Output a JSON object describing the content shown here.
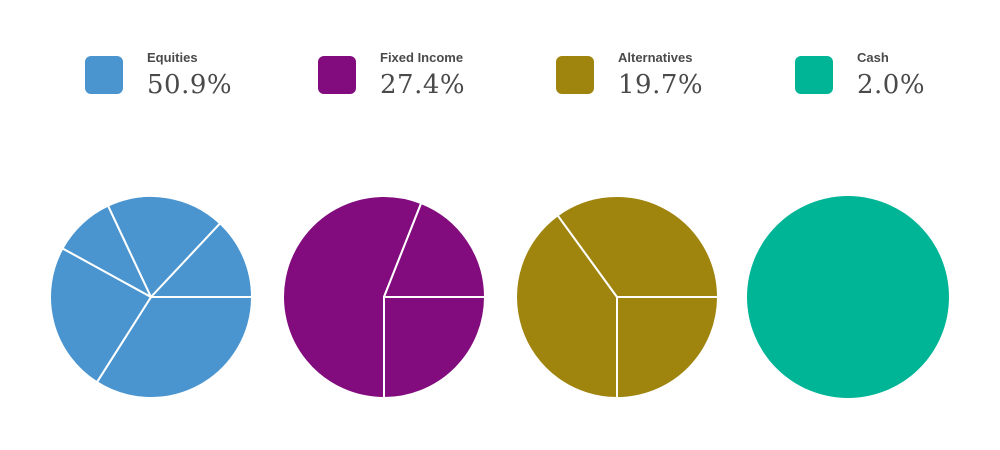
{
  "chart_data": {
    "type": "pie",
    "categories": [
      {
        "label": "Equities",
        "value_label": "50.9%",
        "value": 50.9,
        "color": "#4a95cf",
        "slices": [
          34,
          24,
          10,
          19,
          13
        ]
      },
      {
        "label": "Fixed Income",
        "value_label": "27.4%",
        "value": 27.4,
        "color": "#820b7d",
        "slices": [
          25,
          56,
          19
        ]
      },
      {
        "label": "Alternatives",
        "value_label": "19.7%",
        "value": 19.7,
        "color": "#9f840e",
        "slices": [
          25,
          40,
          35
        ]
      },
      {
        "label": "Cash",
        "value_label": "2.0%",
        "value": 2.0,
        "color": "#00b496",
        "slices": [
          100
        ]
      }
    ]
  }
}
